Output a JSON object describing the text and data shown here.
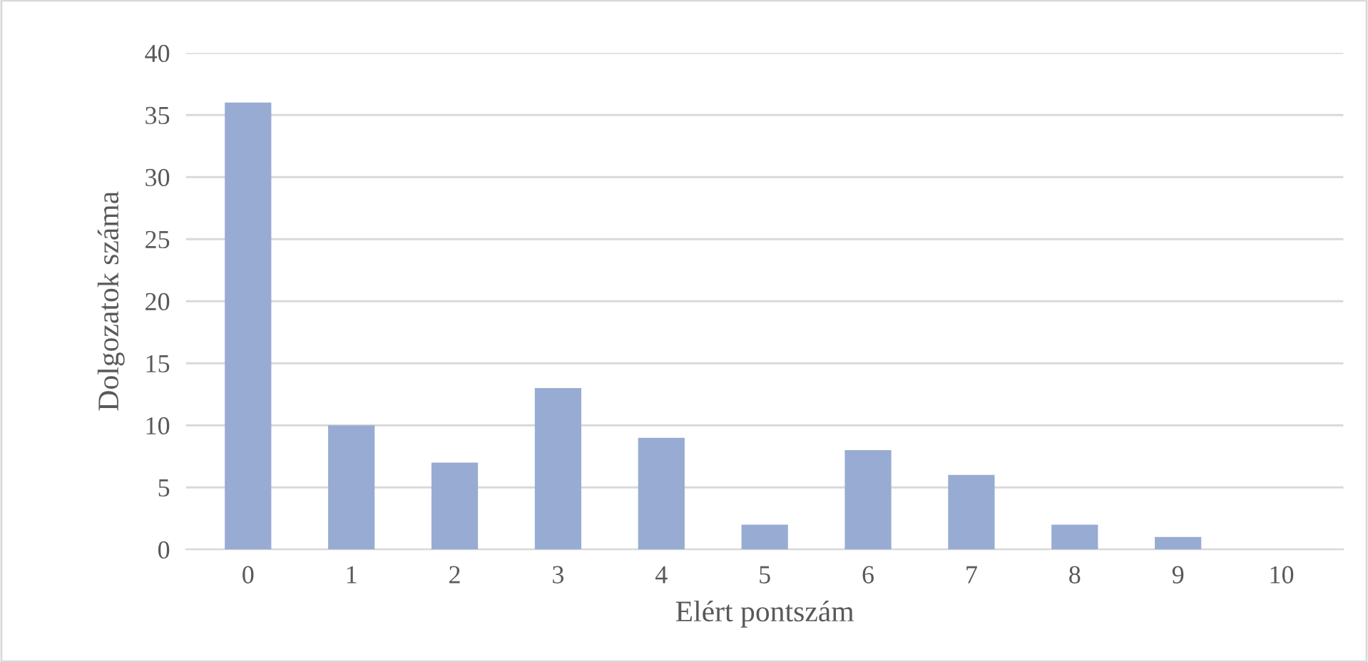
{
  "chart_data": {
    "type": "bar",
    "xlabel": "Elért pontszám",
    "ylabel": "Dolgozatok száma",
    "categories": [
      "0",
      "1",
      "2",
      "3",
      "4",
      "5",
      "6",
      "7",
      "8",
      "9",
      "10"
    ],
    "values": [
      36,
      10,
      7,
      13,
      9,
      2,
      8,
      6,
      2,
      1,
      0
    ],
    "color": "#97abd3",
    "ylim": [
      0,
      40
    ],
    "yticks": [
      0,
      5,
      10,
      15,
      20,
      25,
      30,
      35,
      40
    ],
    "grid": "y",
    "legend": false
  }
}
